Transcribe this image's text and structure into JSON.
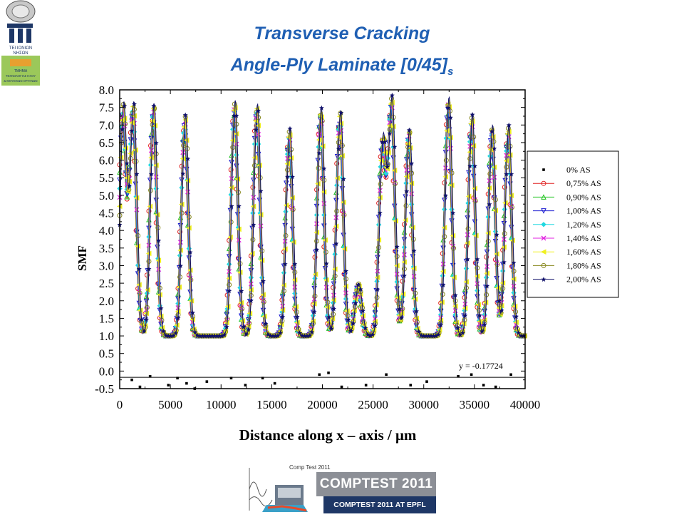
{
  "slide": {
    "title_line1": "Transverse Cracking",
    "title_line2": "Angle-Ply Laminate [0/45]",
    "title_subscript": "s",
    "title_color": "#1f5fb3"
  },
  "logos": {
    "left_logo_text_1": "ΤΕΙ ΙΟΝΙΩΝ",
    "left_logo_text_2": "ΝΗΣΩΝ",
    "left_logo_text_3": "ΤΜΗΜΑ",
    "left_logo_text_4": "ΤΕΧΝΟΛΟΓΙΑΣ ΗΧΟΥ",
    "left_logo_text_5": "& ΜΟΥΣΙΚΩΝ ΟΡΓΑΝΩΝ",
    "comptest_small_text": "Comp Test 2011",
    "banner_title": "COMPTEST 2011",
    "banner_subtitle": "COMPTEST 2011 AT EPFL"
  },
  "chart_data": {
    "type": "line",
    "xlabel": "Distance along x – axis / μm",
    "ylabel": "SMF",
    "xlim": [
      0,
      40000
    ],
    "ylim": [
      -0.5,
      8.0
    ],
    "x_ticks": [
      0,
      5000,
      10000,
      15000,
      20000,
      25000,
      30000,
      35000,
      40000
    ],
    "y_ticks": [
      "-0.5",
      "0.0",
      "0.5",
      "1.0",
      "1.5",
      "2.0",
      "2.5",
      "3.0",
      "3.5",
      "4.0",
      "4.5",
      "5.0",
      "5.5",
      "6.0",
      "6.5",
      "7.0",
      "7.5",
      "8.0"
    ],
    "grid": false,
    "legend_position": "right",
    "annotation": "y = -0.17724",
    "reference_line_y": -0.17724,
    "baseline": 1.0,
    "series": [
      {
        "name": "0% AS",
        "color": "#000000",
        "marker": "square",
        "style": "scatter"
      },
      {
        "name": "0,75% AS",
        "color": "#e02020",
        "marker": "circle"
      },
      {
        "name": "0,90% AS",
        "color": "#22c422",
        "marker": "triangle-up"
      },
      {
        "name": "1,00% AS",
        "color": "#1a1ad0",
        "marker": "triangle-down"
      },
      {
        "name": "1,20% AS",
        "color": "#20d8e0",
        "marker": "diamond"
      },
      {
        "name": "1,40% AS",
        "color": "#e020e0",
        "marker": "x"
      },
      {
        "name": "1,60% AS",
        "color": "#f0f020",
        "marker": "triangle-left"
      },
      {
        "name": "1,80% AS",
        "color": "#8a8a20",
        "marker": "circle-cross"
      },
      {
        "name": "2,00% AS",
        "color": "#10106a",
        "marker": "star"
      }
    ],
    "peaks_2_00_AS": [
      {
        "x": 400,
        "y": 7.6
      },
      {
        "x": 1400,
        "y": 7.6
      },
      {
        "x": 3400,
        "y": 7.6
      },
      {
        "x": 6500,
        "y": 7.3
      },
      {
        "x": 11400,
        "y": 7.7
      },
      {
        "x": 13600,
        "y": 7.6
      },
      {
        "x": 16800,
        "y": 6.9
      },
      {
        "x": 19900,
        "y": 7.5
      },
      {
        "x": 21800,
        "y": 7.4
      },
      {
        "x": 23600,
        "y": 2.5
      },
      {
        "x": 26000,
        "y": 6.6
      },
      {
        "x": 26900,
        "y": 7.7
      },
      {
        "x": 28600,
        "y": 6.9
      },
      {
        "x": 32500,
        "y": 7.8
      },
      {
        "x": 34800,
        "y": 7.3
      },
      {
        "x": 36800,
        "y": 7.0
      },
      {
        "x": 38400,
        "y": 7.0
      }
    ],
    "points_0_AS": [
      {
        "x": 1200,
        "y": -0.25
      },
      {
        "x": 2000,
        "y": -0.45
      },
      {
        "x": 3000,
        "y": -0.15
      },
      {
        "x": 4800,
        "y": -0.4
      },
      {
        "x": 5700,
        "y": -0.2
      },
      {
        "x": 6600,
        "y": -0.35
      },
      {
        "x": 7400,
        "y": -0.5
      },
      {
        "x": 8600,
        "y": -0.3
      },
      {
        "x": 11000,
        "y": -0.2
      },
      {
        "x": 12400,
        "y": -0.4
      },
      {
        "x": 14100,
        "y": -0.2
      },
      {
        "x": 15300,
        "y": -0.35
      },
      {
        "x": 19700,
        "y": -0.1
      },
      {
        "x": 20600,
        "y": -0.05
      },
      {
        "x": 21900,
        "y": -0.45
      },
      {
        "x": 24300,
        "y": -0.4
      },
      {
        "x": 26300,
        "y": -0.1
      },
      {
        "x": 28700,
        "y": -0.4
      },
      {
        "x": 30300,
        "y": -0.3
      },
      {
        "x": 33400,
        "y": -0.15
      },
      {
        "x": 34700,
        "y": -0.1
      },
      {
        "x": 35900,
        "y": -0.4
      },
      {
        "x": 37100,
        "y": -0.45
      },
      {
        "x": 38600,
        "y": -0.1
      }
    ]
  }
}
